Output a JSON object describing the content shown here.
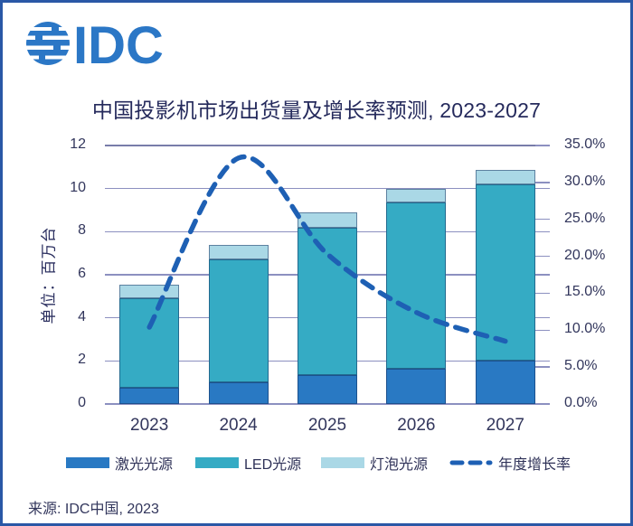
{
  "logo": {
    "text": "IDC",
    "color": "#2B77C6"
  },
  "title": "中国投影机市场出货量及增长率预测, 2023-2027",
  "source": "来源: IDC中国, 2023",
  "colors": {
    "grid": "#8C90C0",
    "text": "#32365C",
    "title_text": "#252A5C",
    "frame_border": "#2A58A6"
  },
  "chart_data": {
    "type": "bar",
    "subtype": "stacked-bars-with-growth-line",
    "title": "中国投影机市场出货量及增长率预测, 2023-2027",
    "categories": [
      "2023",
      "2024",
      "2025",
      "2026",
      "2027"
    ],
    "series": [
      {
        "name": "激光光源",
        "type": "bar",
        "axis": "left",
        "color": "#2979C3",
        "values": [
          0.75,
          1.0,
          1.35,
          1.65,
          2.0
        ]
      },
      {
        "name": "LED光源",
        "type": "bar",
        "axis": "left",
        "color": "#35ABC4",
        "values": [
          4.15,
          5.7,
          6.85,
          7.7,
          8.2
        ]
      },
      {
        "name": "灯泡光源",
        "type": "bar",
        "axis": "left",
        "color": "#AAD8E6",
        "values": [
          0.65,
          0.7,
          0.7,
          0.65,
          0.65
        ]
      },
      {
        "name": "年度增长率",
        "type": "line",
        "axis": "right",
        "color": "#1E60B4",
        "values": [
          10.4,
          33.3,
          20.3,
          12.4,
          8.5
        ]
      }
    ],
    "left_axis": {
      "label": "单位：百万台",
      "min": 0,
      "max": 12,
      "ticks": [
        "0",
        "2",
        "4",
        "6",
        "8",
        "10",
        "12"
      ]
    },
    "right_axis": {
      "min": 0,
      "max": 35,
      "ticks": [
        "0.0%",
        "5.0%",
        "10.0%",
        "15.0%",
        "20.0%",
        "25.0%",
        "30.0%",
        "35.0%"
      ]
    },
    "grid": true,
    "legend_position": "bottom"
  },
  "legend": [
    {
      "swatch": "rect",
      "series_index": 0
    },
    {
      "swatch": "rect",
      "series_index": 1
    },
    {
      "swatch": "rect",
      "series_index": 2
    },
    {
      "swatch": "dashes",
      "series_index": 3
    }
  ]
}
